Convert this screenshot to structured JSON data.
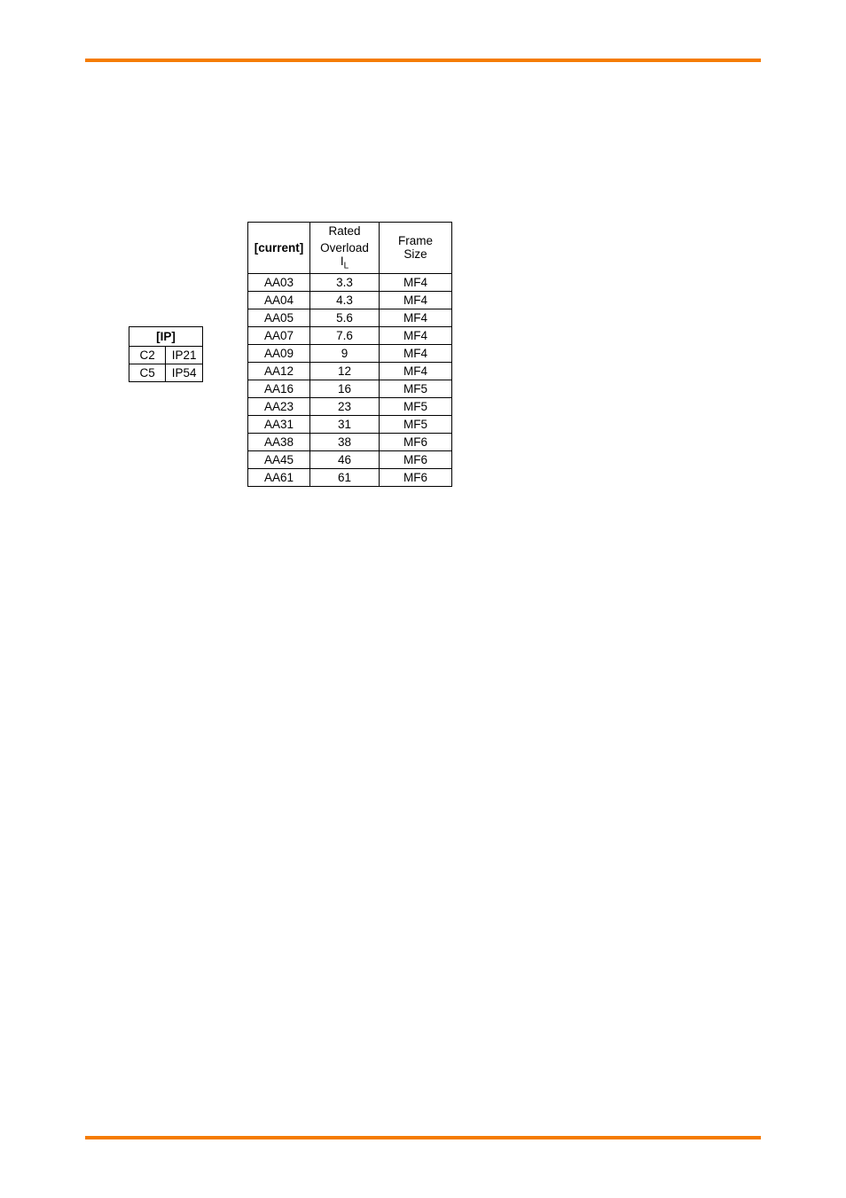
{
  "colors": {
    "accent": "#f57c00",
    "text": "#000000",
    "border": "#000000",
    "background": "#ffffff"
  },
  "ip_table": {
    "header": "[IP]",
    "rows": [
      [
        "C2",
        "IP21"
      ],
      [
        "C5",
        "IP54"
      ]
    ]
  },
  "current_table": {
    "headers": {
      "col1": "[current]",
      "col2_top": "Rated",
      "col2_bottom_prefix": "Overload I",
      "col2_bottom_sub": "L",
      "col3": "Frame Size"
    },
    "rows": [
      [
        "AA03",
        "3.3",
        "MF4"
      ],
      [
        "AA04",
        "4.3",
        "MF4"
      ],
      [
        "AA05",
        "5.6",
        "MF4"
      ],
      [
        "AA07",
        "7.6",
        "MF4"
      ],
      [
        "AA09",
        "9",
        "MF4"
      ],
      [
        "AA12",
        "12",
        "MF4"
      ],
      [
        "AA16",
        "16",
        "MF5"
      ],
      [
        "AA23",
        "23",
        "MF5"
      ],
      [
        "AA31",
        "31",
        "MF5"
      ],
      [
        "AA38",
        "38",
        "MF6"
      ],
      [
        "AA45",
        "46",
        "MF6"
      ],
      [
        "AA61",
        "61",
        "MF6"
      ]
    ]
  }
}
